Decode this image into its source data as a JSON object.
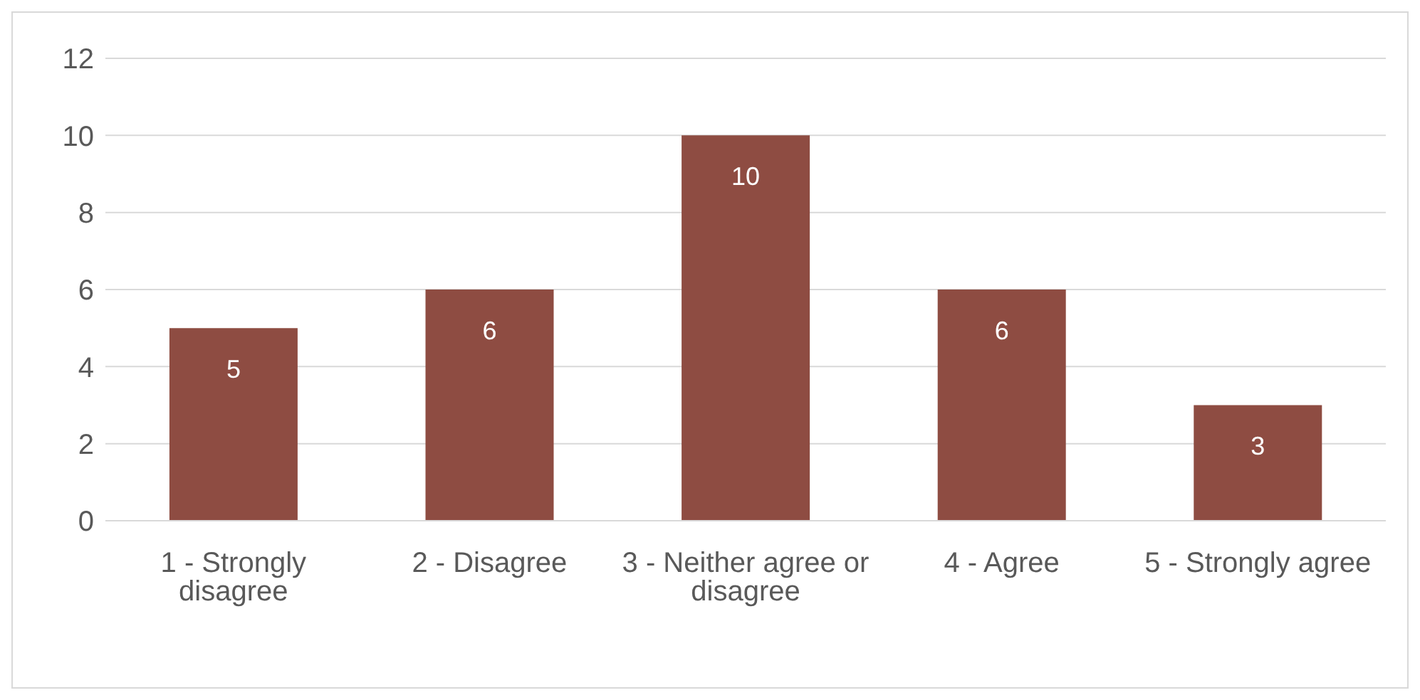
{
  "chart_data": {
    "type": "bar",
    "categories": [
      "1 - Strongly disagree",
      "2 - Disagree",
      "3 - Neither agree or disagree",
      "4 - Agree",
      "5 - Strongly agree"
    ],
    "values": [
      5,
      6,
      10,
      6,
      3
    ],
    "color": "#8e4c42",
    "ylim": [
      0,
      12
    ],
    "yticks": [
      0,
      2,
      4,
      6,
      8,
      10,
      12
    ],
    "grid": "y",
    "data_labels": true,
    "legend": false
  }
}
